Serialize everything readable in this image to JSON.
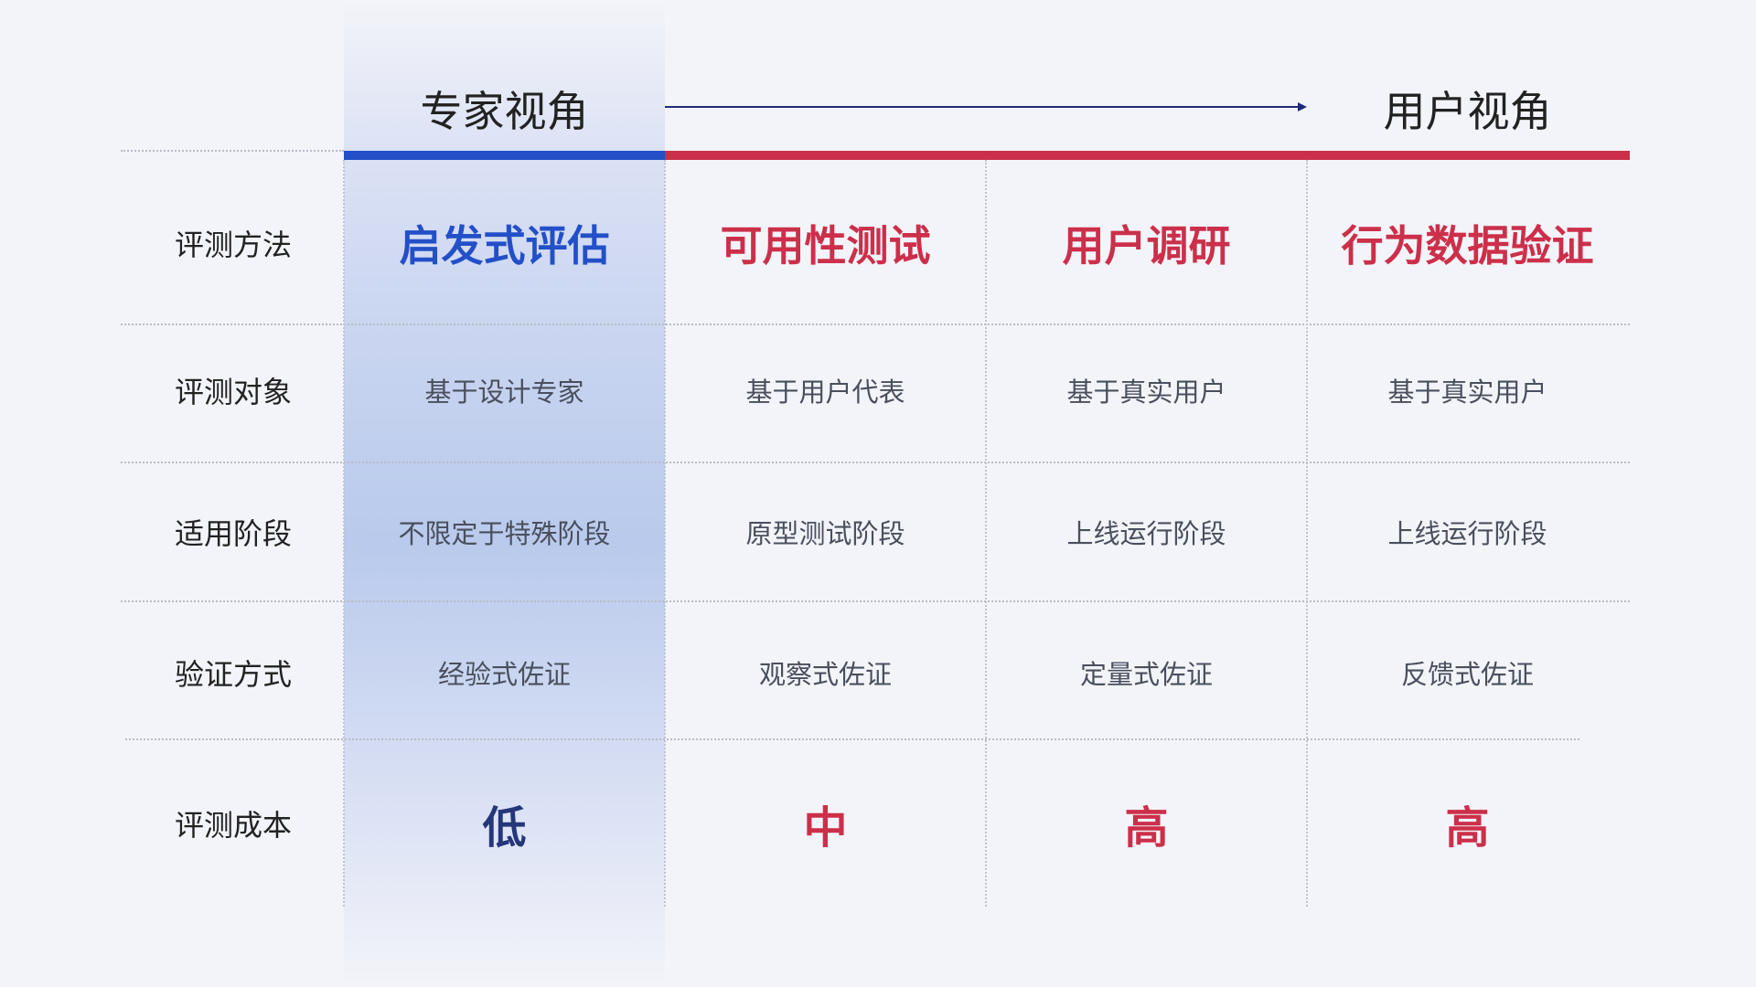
{
  "headers": {
    "expert": "专家视角",
    "user": "用户视角"
  },
  "colors": {
    "expert": "#2350c8",
    "user": "#cc2f4a",
    "low": "#26367a"
  },
  "rows": [
    {
      "label": "评测方法",
      "values": [
        "启发式评估",
        "可用性测试",
        "用户调研",
        "行为数据验证"
      ]
    },
    {
      "label": "评测对象",
      "values": [
        "基于设计专家",
        "基于用户代表",
        "基于真实用户",
        "基于真实用户"
      ]
    },
    {
      "label": "适用阶段",
      "values": [
        "不限定于特殊阶段",
        "原型测试阶段",
        "上线运行阶段",
        "上线运行阶段"
      ]
    },
    {
      "label": "验证方式",
      "values": [
        "经验式佐证",
        "观察式佐证",
        "定量式佐证",
        "反馈式佐证"
      ]
    },
    {
      "label": "评测成本",
      "values": [
        "低",
        "中",
        "高",
        "高"
      ]
    }
  ]
}
